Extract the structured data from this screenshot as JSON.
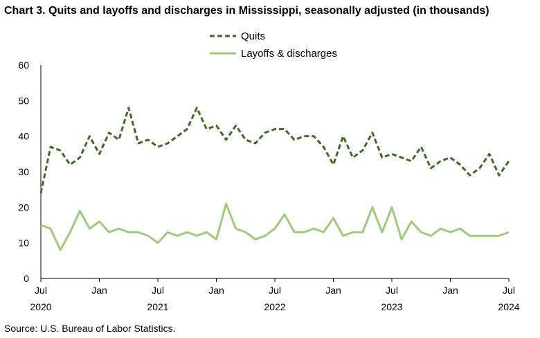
{
  "title": "Chart 3. Quits and layoffs and discharges in Mississippi, seasonally adjusted (in thousands)",
  "source": "Source: U.S. Bureau of Labor Statistics.",
  "chart_data": {
    "type": "line",
    "title": "Chart 3. Quits and layoffs and discharges in Mississippi, seasonally adjusted (in thousands)",
    "xlabel": "",
    "ylabel": "",
    "ylim": [
      0,
      60
    ],
    "yticks": [
      0,
      10,
      20,
      30,
      40,
      50,
      60
    ],
    "grid": false,
    "legend_position": "top-center",
    "x": [
      "2020-07",
      "2020-08",
      "2020-09",
      "2020-10",
      "2020-11",
      "2020-12",
      "2021-01",
      "2021-02",
      "2021-03",
      "2021-04",
      "2021-05",
      "2021-06",
      "2021-07",
      "2021-08",
      "2021-09",
      "2021-10",
      "2021-11",
      "2021-12",
      "2022-01",
      "2022-02",
      "2022-03",
      "2022-04",
      "2022-05",
      "2022-06",
      "2022-07",
      "2022-08",
      "2022-09",
      "2022-10",
      "2022-11",
      "2022-12",
      "2023-01",
      "2023-02",
      "2023-03",
      "2023-04",
      "2023-05",
      "2023-06",
      "2023-07",
      "2023-08",
      "2023-09",
      "2023-10",
      "2023-11",
      "2023-12",
      "2024-01",
      "2024-02",
      "2024-03",
      "2024-04",
      "2024-05",
      "2024-06",
      "2024-07"
    ],
    "x_tick_labels": [
      {
        "month": "Jul",
        "year": "2020",
        "index": 0
      },
      {
        "month": "Jan",
        "year": "",
        "index": 6
      },
      {
        "month": "Jul",
        "year": "2021",
        "index": 12
      },
      {
        "month": "Jan",
        "year": "",
        "index": 18
      },
      {
        "month": "Jul",
        "year": "2022",
        "index": 24
      },
      {
        "month": "Jan",
        "year": "",
        "index": 30
      },
      {
        "month": "Jul",
        "year": "2023",
        "index": 36
      },
      {
        "month": "Jan",
        "year": "",
        "index": 42
      },
      {
        "month": "Jul",
        "year": "2024",
        "index": 48
      }
    ],
    "series": [
      {
        "name": "Quits",
        "color": "#3d6b23",
        "style": "dashed",
        "values": [
          24,
          37,
          36,
          32,
          34,
          40,
          35,
          41,
          39,
          48,
          38,
          39,
          37,
          38,
          40,
          42,
          48,
          42,
          43,
          39,
          43,
          39,
          38,
          41,
          42,
          42,
          39,
          40,
          40,
          37,
          32,
          40,
          34,
          36,
          41,
          34,
          35,
          34,
          33,
          37,
          31,
          33,
          34,
          32,
          29,
          31,
          35,
          29,
          33
        ]
      },
      {
        "name": "Layoffs & discharges",
        "color": "#9ccc78",
        "style": "solid",
        "values": [
          15,
          14,
          8,
          13,
          19,
          14,
          16,
          13,
          14,
          13,
          13,
          12,
          10,
          13,
          12,
          13,
          12,
          13,
          11,
          21,
          14,
          13,
          11,
          12,
          14,
          18,
          13,
          13,
          14,
          13,
          17,
          12,
          13,
          13,
          20,
          13,
          20,
          11,
          16,
          13,
          12,
          14,
          13,
          14,
          12,
          12,
          12,
          12,
          13
        ]
      }
    ]
  }
}
